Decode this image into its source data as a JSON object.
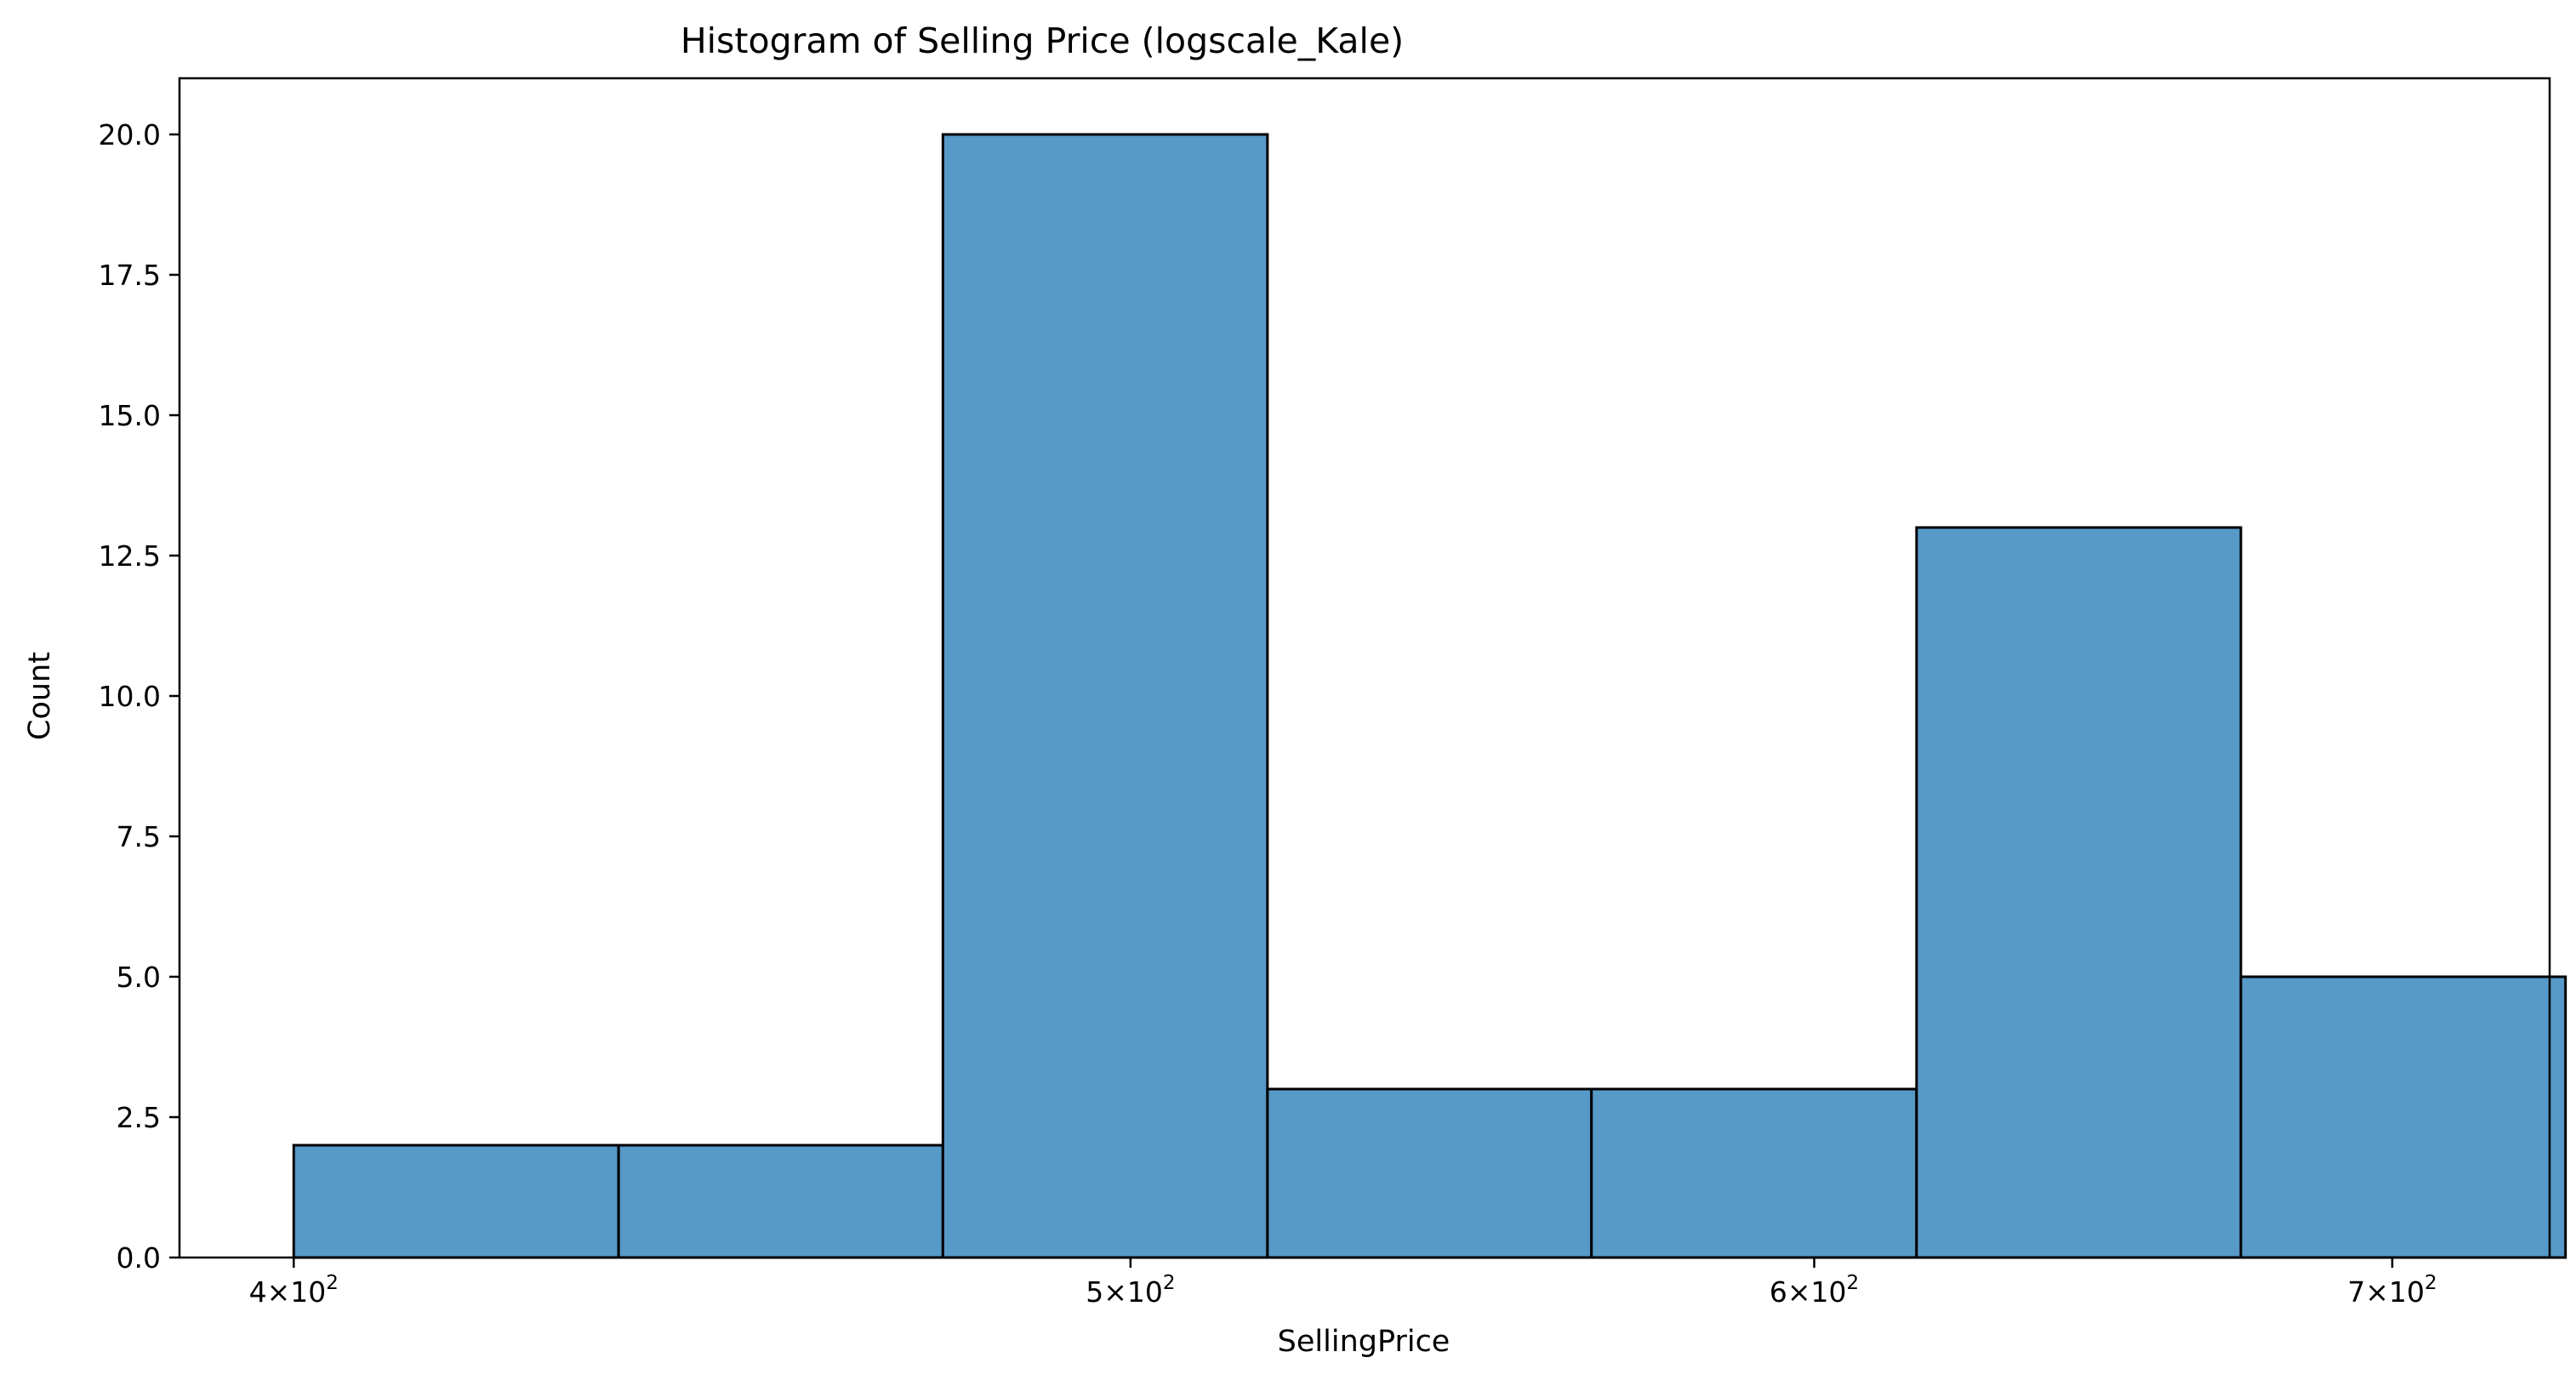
{
  "chart_data": {
    "type": "bar",
    "title": "Histogram of Selling Price (logscale_Kale)",
    "xlabel": "SellingPrice",
    "ylabel": "Count",
    "x_scale": "log",
    "xlim": [
      388,
      730
    ],
    "ylim": [
      0,
      21
    ],
    "grid": false,
    "bar_color": "#5799c7",
    "edge_color": "#000000",
    "bins": [
      {
        "x0": 400,
        "x1": 436.2,
        "count": 2
      },
      {
        "x0": 436.2,
        "x1": 475.6,
        "count": 2
      },
      {
        "x0": 475.6,
        "x1": 518.6,
        "count": 20
      },
      {
        "x0": 518.6,
        "x1": 565.4,
        "count": 3
      },
      {
        "x0": 565.4,
        "x1": 616.6,
        "count": 3
      },
      {
        "x0": 616.6,
        "x1": 672.3,
        "count": 13
      },
      {
        "x0": 672.3,
        "x1": 733.1,
        "count": 5
      }
    ],
    "y_ticks": [
      {
        "value": 0,
        "label": "0.0"
      },
      {
        "value": 2.5,
        "label": "2.5"
      },
      {
        "value": 5,
        "label": "5.0"
      },
      {
        "value": 7.5,
        "label": "7.5"
      },
      {
        "value": 10,
        "label": "10.0"
      },
      {
        "value": 12.5,
        "label": "12.5"
      },
      {
        "value": 15,
        "label": "15.0"
      },
      {
        "value": 17.5,
        "label": "17.5"
      },
      {
        "value": 20,
        "label": "20.0"
      }
    ],
    "x_ticks": [
      {
        "value": 400,
        "mantissa": "4",
        "base": "10",
        "exp": "2"
      },
      {
        "value": 500,
        "mantissa": "5",
        "base": "10",
        "exp": "2"
      },
      {
        "value": 600,
        "mantissa": "6",
        "base": "10",
        "exp": "2"
      },
      {
        "value": 700,
        "mantissa": "7",
        "base": "10",
        "exp": "2"
      }
    ]
  }
}
